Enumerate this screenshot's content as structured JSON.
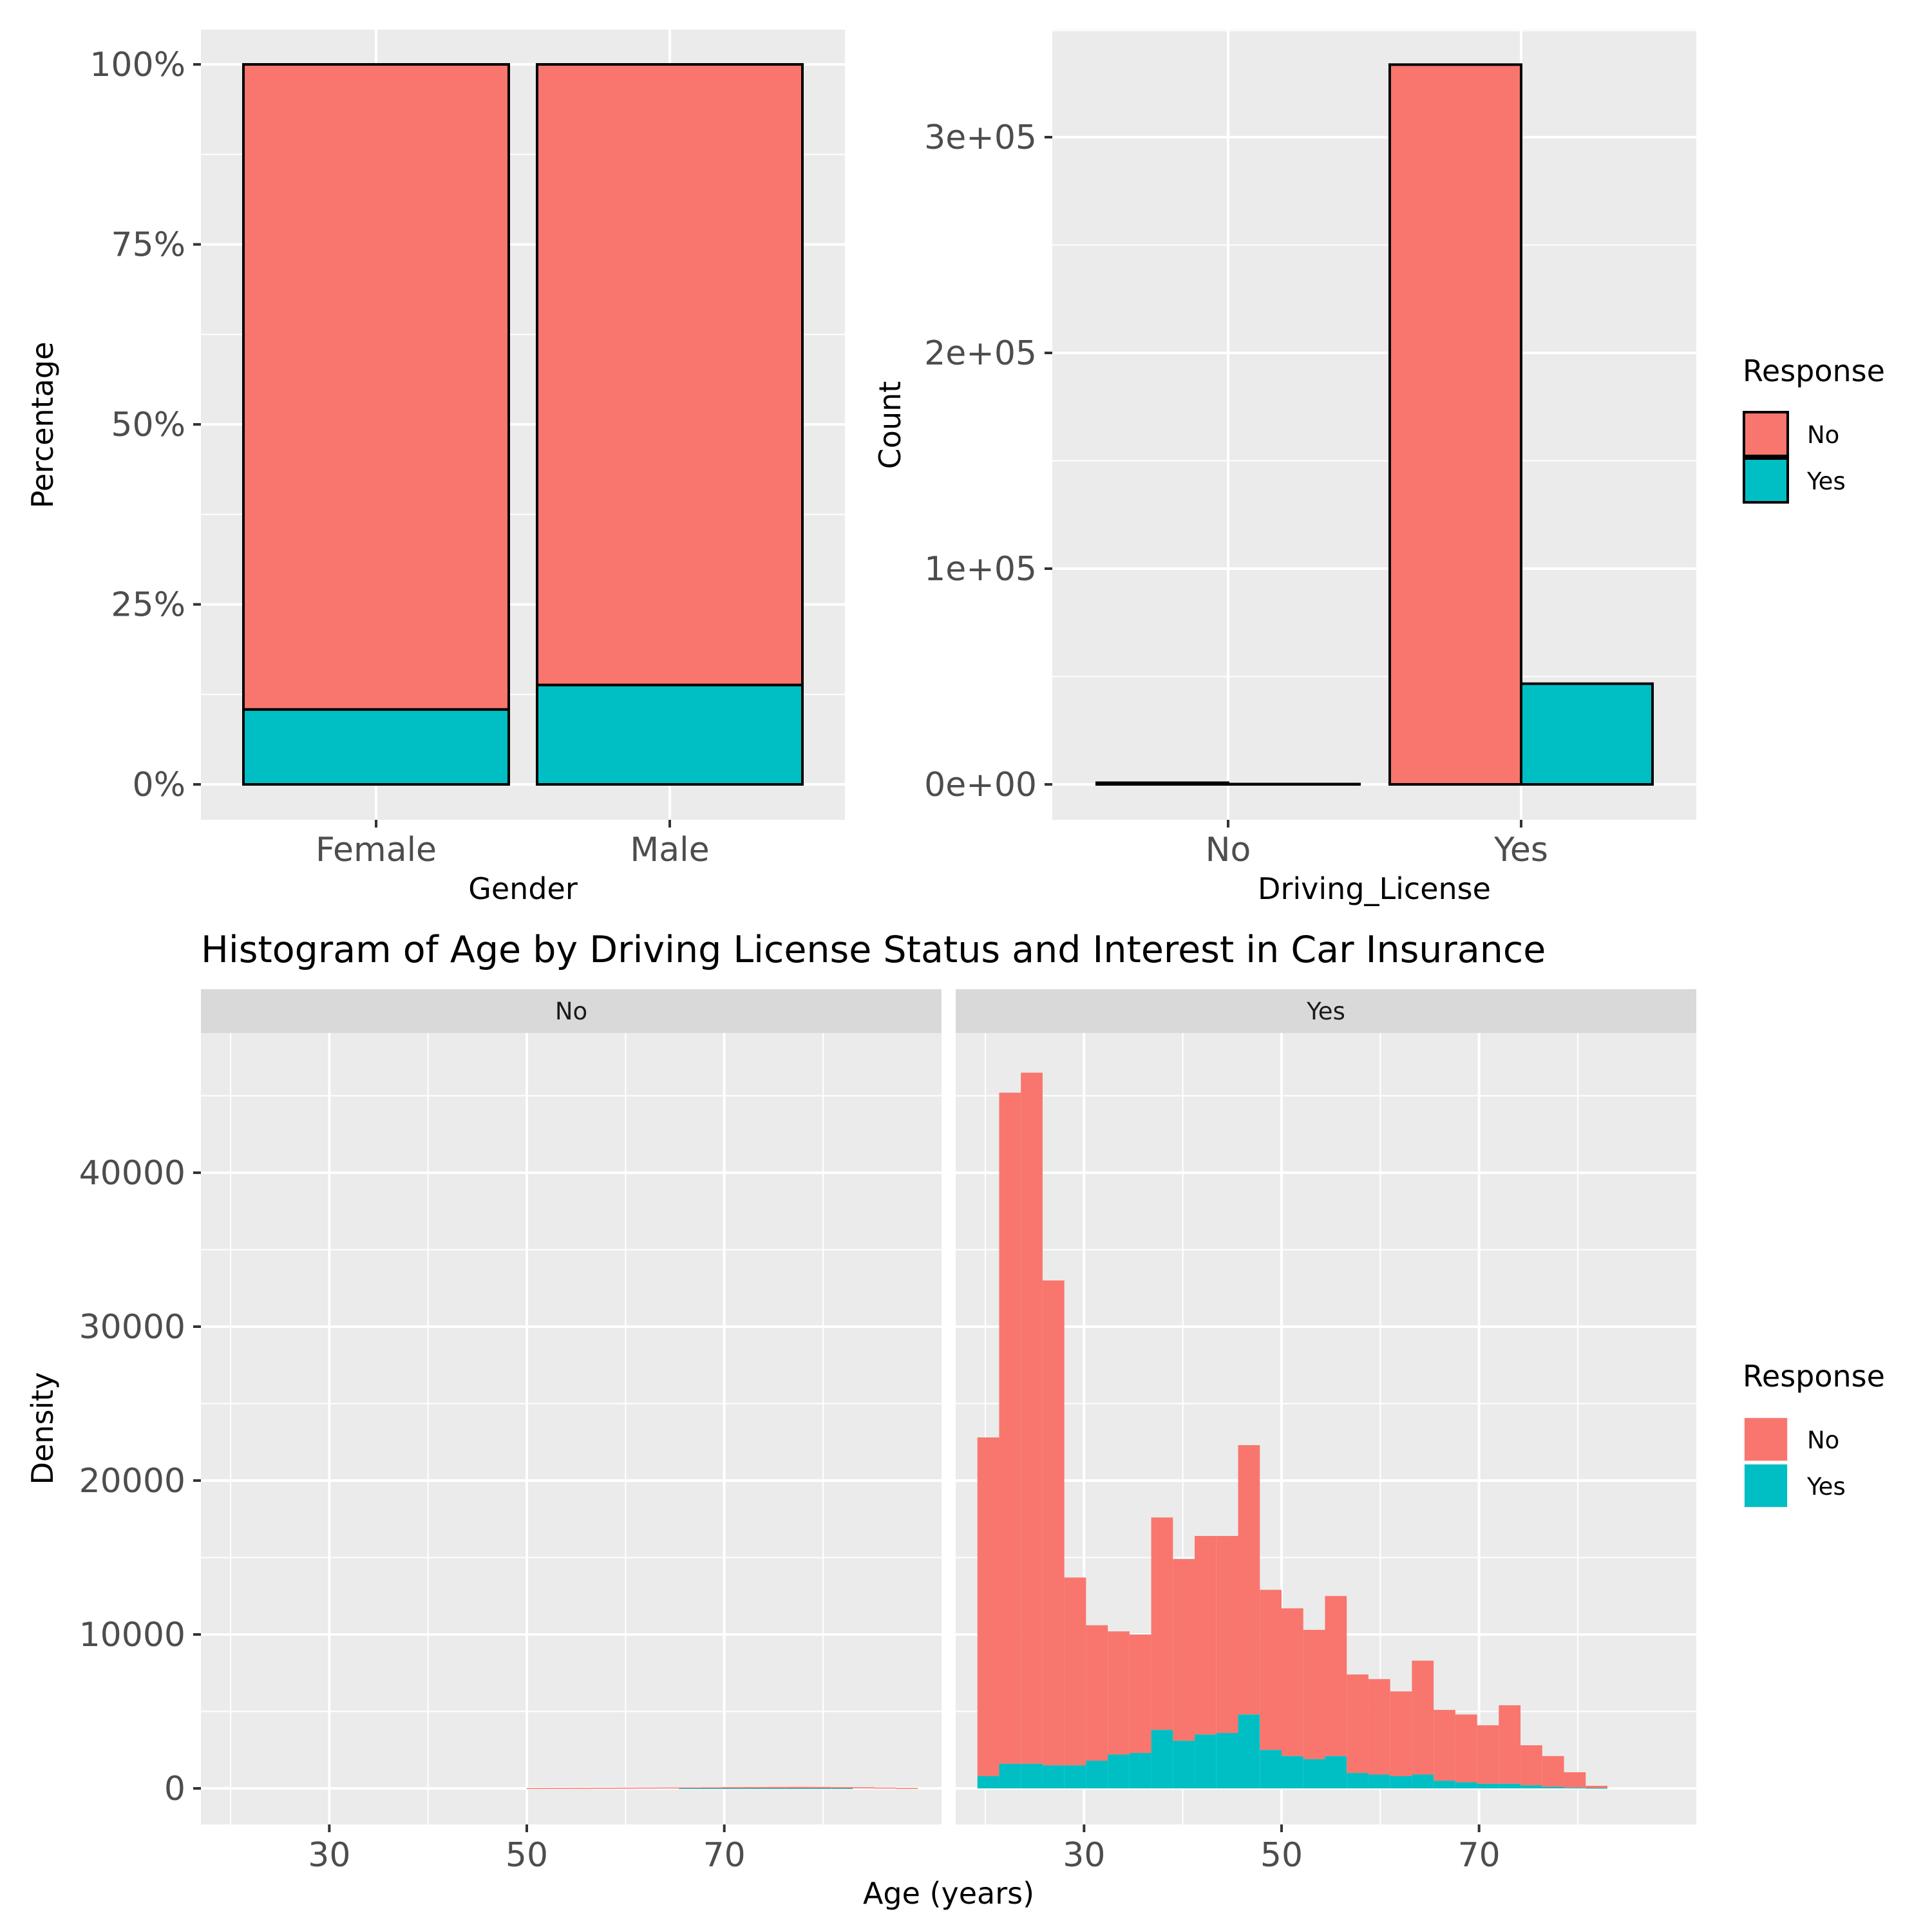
{
  "colors": {
    "no": "#F8766D",
    "yes": "#00BFC4",
    "panel": "#EBEBEB",
    "grid_major": "#FFFFFF",
    "strip": "#D9D9D9"
  },
  "legend_top": {
    "title": "Response",
    "items": [
      "No",
      "Yes"
    ]
  },
  "legend_bottom": {
    "title": "Response",
    "items": [
      "No",
      "Yes"
    ]
  },
  "chart_data": [
    {
      "type": "bar",
      "stacked": true,
      "position": "fill",
      "categories": [
        "Female",
        "Male"
      ],
      "series": [
        {
          "name": "No",
          "values": [
            0.896,
            0.862
          ]
        },
        {
          "name": "Yes",
          "values": [
            0.104,
            0.138
          ]
        }
      ],
      "xlabel": "Gender",
      "ylabel": "Percentage",
      "ylim": [
        0,
        1
      ],
      "yticks": [
        0,
        0.25,
        0.5,
        0.75,
        1
      ],
      "ytick_labels": [
        "0%",
        "25%",
        "50%",
        "75%",
        "100%"
      ],
      "grid": true,
      "legend": "right"
    },
    {
      "type": "bar",
      "stacked": false,
      "position": "dodge",
      "categories": [
        "No",
        "Yes"
      ],
      "series": [
        {
          "name": "No",
          "values": [
            771,
            333628
          ]
        },
        {
          "name": "Yes",
          "values": [
            41,
            46669
          ]
        }
      ],
      "xlabel": "Driving_License",
      "ylabel": "Count",
      "ylim": [
        0,
        350000
      ],
      "yticks": [
        0,
        100000,
        200000,
        300000
      ],
      "ytick_labels": [
        "0e+00",
        "1e+05",
        "2e+05",
        "3e+05"
      ],
      "grid": true,
      "legend": "right"
    },
    {
      "type": "bar",
      "subtype": "histogram",
      "stacked": true,
      "title": "Histogram of Age by Driving License Status and Interest in Car Insurance",
      "xlabel": "Age (years)",
      "ylabel": "Density",
      "facets": [
        "No",
        "Yes"
      ],
      "bin_width": 2.2,
      "bin_start": 19.2,
      "xlim": [
        17,
        92
      ],
      "ylim": [
        -2300,
        49500
      ],
      "xticks": [
        30,
        50,
        70
      ],
      "yticks": [
        0,
        10000,
        20000,
        30000,
        40000
      ],
      "grid": true,
      "legend": "right",
      "panels": [
        {
          "facet": "No",
          "no": [
            0,
            0,
            0,
            0,
            0,
            0,
            0,
            0,
            0,
            0,
            0,
            0,
            0,
            0,
            20,
            25,
            30,
            40,
            45,
            50,
            55,
            60,
            70,
            80,
            85,
            90,
            95,
            90,
            80,
            70,
            50,
            25
          ],
          "yes": [
            0,
            0,
            0,
            0,
            0,
            0,
            0,
            0,
            0,
            0,
            0,
            0,
            0,
            0,
            0,
            0,
            0,
            0,
            0,
            0,
            0,
            1,
            1,
            1,
            1,
            1,
            1,
            1,
            1,
            0,
            0,
            0
          ]
        },
        {
          "facet": "Yes",
          "no": [
            22000,
            43600,
            44900,
            31500,
            12200,
            8800,
            8000,
            7700,
            13800,
            11800,
            12900,
            12800,
            17500,
            10400,
            9600,
            8400,
            10400,
            6400,
            6200,
            5500,
            7400,
            4600,
            4400,
            3800,
            5100,
            2600,
            2000,
            1000,
            150
          ],
          "yes": [
            800,
            1600,
            1600,
            1500,
            1500,
            1800,
            2200,
            2300,
            3800,
            3100,
            3500,
            3600,
            4800,
            2500,
            2100,
            1900,
            2100,
            1000,
            900,
            800,
            900,
            500,
            400,
            300,
            300,
            200,
            100,
            50,
            20
          ]
        }
      ]
    }
  ]
}
